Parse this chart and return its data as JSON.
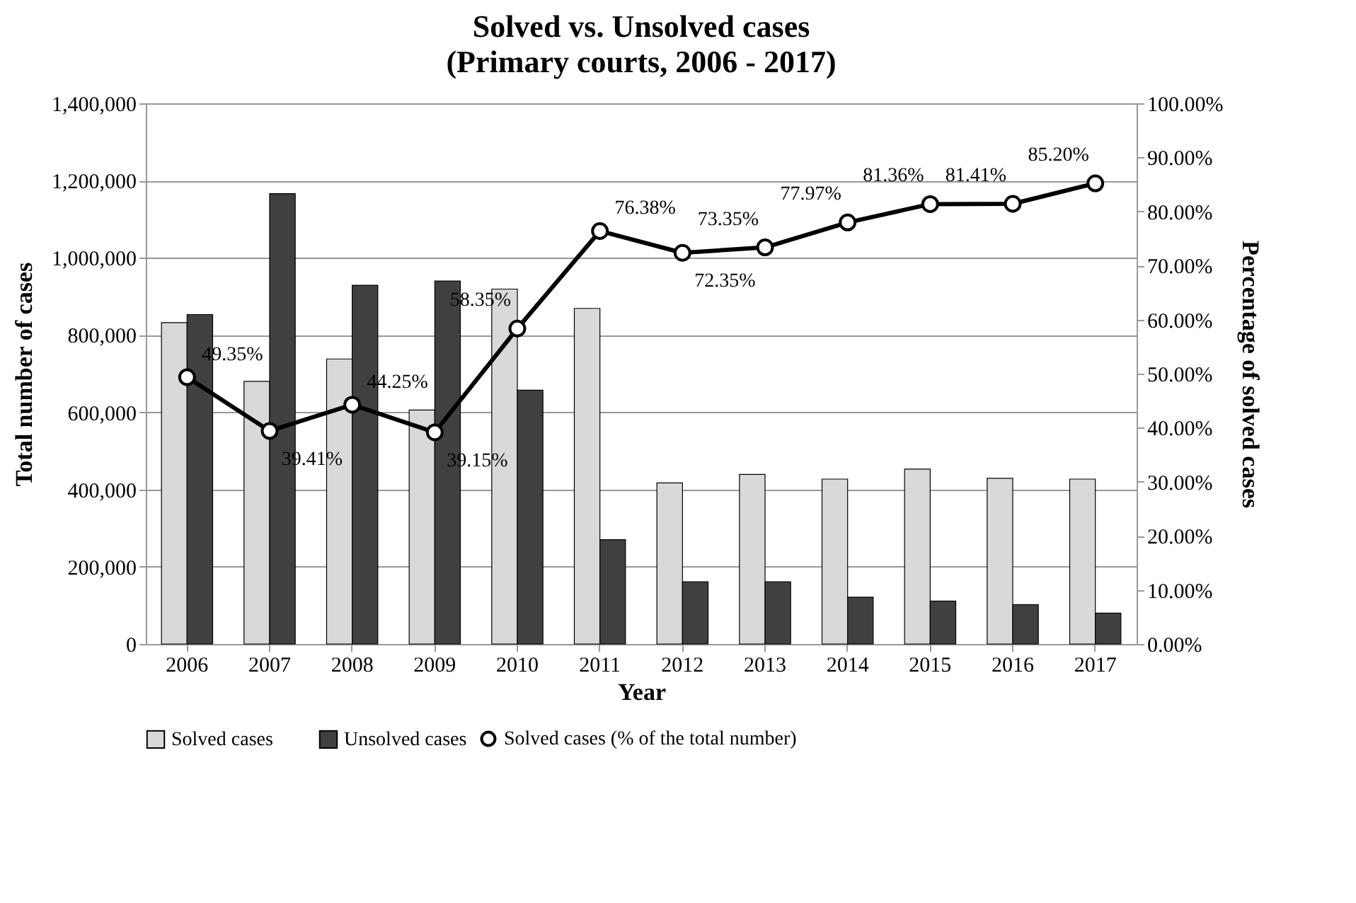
{
  "chart_data": {
    "type": "bar",
    "title": "Solved vs. Unsolved cases",
    "subtitle": "(Primary courts, 2006 - 2017)",
    "xlabel": "Year",
    "ylabel": "Total number of cases",
    "y2label": "Percentage of solved cases",
    "categories": [
      "2006",
      "2007",
      "2008",
      "2009",
      "2010",
      "2011",
      "2012",
      "2013",
      "2014",
      "2015",
      "2016",
      "2017"
    ],
    "series": [
      {
        "name": "Solved cases",
        "color": "#d9d9d9",
        "values": [
          832000,
          680000,
          738000,
          606000,
          919000,
          869000,
          417000,
          439000,
          427000,
          453000,
          429000,
          427000
        ]
      },
      {
        "name": "Unsolved cases",
        "color": "#404040",
        "values": [
          853000,
          1166000,
          929000,
          940000,
          657000,
          270000,
          161000,
          161000,
          121000,
          111000,
          102000,
          80000
        ]
      },
      {
        "name": "Solved cases (% of the total number)",
        "type": "line",
        "axis": "y2",
        "color": "#000000",
        "marker": "circle",
        "line_style": "solid",
        "data_labels": true,
        "value_labels": [
          "49.35%",
          "39.41%",
          "44.25%",
          "39.15%",
          "58.35%",
          "76.38%",
          "72.35%",
          "73.35%",
          "77.97%",
          "81.36%",
          "81.41%",
          "85.20%"
        ],
        "values": [
          49.35,
          39.41,
          44.25,
          39.15,
          58.35,
          76.38,
          72.35,
          73.35,
          77.97,
          81.36,
          81.41,
          85.2
        ]
      }
    ],
    "ylim": [
      0,
      1400000
    ],
    "yticks": [
      {
        "value": 0,
        "label": "0"
      },
      {
        "value": 200000,
        "label": "200,000"
      },
      {
        "value": 400000,
        "label": "400,000"
      },
      {
        "value": 600000,
        "label": "600,000"
      },
      {
        "value": 800000,
        "label": "800,000"
      },
      {
        "value": 1000000,
        "label": "1,000,000"
      },
      {
        "value": 1200000,
        "label": "1,200,000"
      },
      {
        "value": 1400000,
        "label": "1,400,000"
      }
    ],
    "y2lim": [
      0,
      100
    ],
    "y2ticks": [
      {
        "value": 0,
        "label": "0.00%"
      },
      {
        "value": 10,
        "label": "10.00%"
      },
      {
        "value": 20,
        "label": "20.00%"
      },
      {
        "value": 30,
        "label": "30.00%"
      },
      {
        "value": 40,
        "label": "40.00%"
      },
      {
        "value": 50,
        "label": "50.00%"
      },
      {
        "value": 60,
        "label": "60.00%"
      },
      {
        "value": 70,
        "label": "70.00%"
      },
      {
        "value": 80,
        "label": "80.00%"
      },
      {
        "value": 90,
        "label": "90.00%"
      },
      {
        "value": 100,
        "label": "100.00%"
      }
    ],
    "grid": "y",
    "legend": "bottom"
  }
}
